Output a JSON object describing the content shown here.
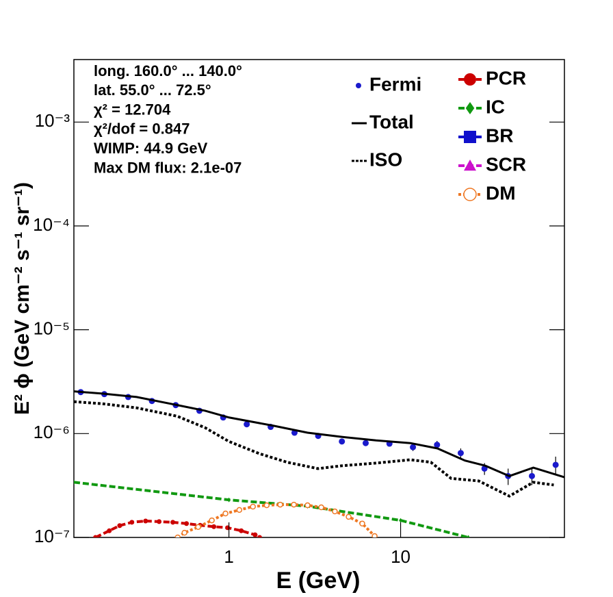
{
  "chart_data": {
    "type": "line",
    "xlabel": "E (GeV)",
    "ylabel": "E² ϕ (GeV cm⁻² s⁻¹ sr⁻¹)",
    "xlog": true,
    "ylog": true,
    "xlim": [
      0.125,
      90
    ],
    "ylim": [
      1e-07,
      0.004
    ],
    "xticks": [
      1,
      10
    ],
    "yticks": [
      {
        "value": 1e-07,
        "label": "10⁻⁷"
      },
      {
        "value": 1e-06,
        "label": "10⁻⁶"
      },
      {
        "value": 1e-05,
        "label": "10⁻⁵"
      },
      {
        "value": 0.0001,
        "label": "10⁻⁴"
      },
      {
        "value": 0.001,
        "label": "10⁻³"
      }
    ],
    "annotations": [
      "long. 160.0° ... 140.0°",
      "lat. 55.0° ... 72.5°",
      "χ² = 12.704",
      "χ²/dof = 0.847",
      "WIMP: 44.9 GeV",
      "Max DM flux: 2.1e-07"
    ],
    "series": [
      {
        "name": "Fermi",
        "color": "#1a1acc",
        "marker": "circle",
        "line": "none",
        "x": [
          0.137,
          0.188,
          0.259,
          0.356,
          0.49,
          0.673,
          0.926,
          1.27,
          1.75,
          2.41,
          3.31,
          4.55,
          6.26,
          8.61,
          11.8,
          16.3,
          22.4,
          30.8,
          42.3,
          58.2,
          80.0
        ],
        "values": [
          2.51e-06,
          2.4e-06,
          2.25e-06,
          2.06e-06,
          1.88e-06,
          1.66e-06,
          1.43e-06,
          1.23e-06,
          1.16e-06,
          1.02e-06,
          9.5e-07,
          8.4e-07,
          8.1e-07,
          8e-07,
          7.4e-07,
          7.8e-07,
          6.5e-07,
          4.6e-07,
          3.9e-07,
          3.9e-07,
          5e-07
        ],
        "errors": [
          4e-08,
          4e-08,
          4e-08,
          4e-08,
          4e-08,
          4e-08,
          3e-08,
          3e-08,
          3e-08,
          3e-08,
          3e-08,
          3e-08,
          3e-08,
          3e-08,
          6e-08,
          7e-08,
          7e-08,
          6e-08,
          7e-08,
          7e-08,
          1e-07
        ]
      },
      {
        "name": "Total",
        "color": "#000000",
        "marker": "none",
        "line": "solid",
        "x": [
          0.125,
          0.183,
          0.29,
          0.502,
          0.726,
          1,
          1.82,
          2.87,
          4.54,
          7.19,
          11.4,
          16.4,
          23.7,
          31.2,
          43.0,
          59.3,
          90
        ],
        "values": [
          2.55e-06,
          2.43e-06,
          2.25e-06,
          1.88e-06,
          1.66e-06,
          1.43e-06,
          1.19e-06,
          1.02e-06,
          9.3e-07,
          8.6e-07,
          8.1e-07,
          7.2e-07,
          5.5e-07,
          4.9e-07,
          3.9e-07,
          4.7e-07,
          3.8e-07
        ]
      },
      {
        "name": "ISO",
        "color": "#000000",
        "marker": "none",
        "line": "dotted",
        "x": [
          0.125,
          0.183,
          0.29,
          0.5,
          0.726,
          1,
          1.51,
          2.18,
          3.3,
          4.54,
          7.19,
          11.4,
          15.0,
          19.7,
          28.5,
          43.0,
          59.3,
          78
        ],
        "values": [
          2.03e-06,
          1.94e-06,
          1.77e-06,
          1.47e-06,
          1.14e-06,
          8.4e-07,
          6.4e-07,
          5.3e-07,
          4.6e-07,
          4.9e-07,
          5.2e-07,
          5.6e-07,
          5.3e-07,
          3.7e-07,
          3.5e-07,
          2.5e-07,
          3.4e-07,
          3.2e-07
        ]
      },
      {
        "name": "PCR",
        "color": "#cc0000",
        "marker": "circle",
        "line": "dashed",
        "x": [
          0.167,
          0.201,
          0.231,
          0.272,
          0.327,
          0.392,
          0.471,
          0.566,
          0.68,
          0.817,
          0.982,
          1.18,
          1.42,
          1.51
        ],
        "values": [
          1e-07,
          1.16e-07,
          1.3e-07,
          1.4e-07,
          1.44e-07,
          1.42e-07,
          1.4e-07,
          1.36e-07,
          1.31e-07,
          1.27e-07,
          1.24e-07,
          1.16e-07,
          1.06e-07,
          1e-07
        ]
      },
      {
        "name": "IC",
        "color": "#119911",
        "marker": "diamond",
        "line": "dashed",
        "x": [
          0.125,
          1,
          2.87,
          10,
          24.8
        ],
        "values": [
          3.4e-07,
          2.3e-07,
          2e-07,
          1.46e-07,
          1e-07
        ]
      },
      {
        "name": "BR",
        "color": "#1010cc",
        "marker": "square",
        "line": "dashed",
        "x": [],
        "values": []
      },
      {
        "name": "SCR",
        "color": "#cc11cc",
        "marker": "triangle",
        "line": "dashed",
        "x": [],
        "values": []
      },
      {
        "name": "DM",
        "color": "#ee7722",
        "marker": "open-circle",
        "line": "dotted",
        "x": [
          0.503,
          0.551,
          0.662,
          0.795,
          0.955,
          1.15,
          1.38,
          1.66,
          1.99,
          2.39,
          2.87,
          3.45,
          4.14,
          4.98,
          5.98,
          7.06
        ],
        "values": [
          1e-07,
          1.11e-07,
          1.26e-07,
          1.46e-07,
          1.7e-07,
          1.84e-07,
          1.98e-07,
          2.04e-07,
          2.07e-07,
          2.07e-07,
          2.04e-07,
          1.95e-07,
          1.78e-07,
          1.58e-07,
          1.36e-07,
          1.03e-07
        ]
      }
    ]
  }
}
